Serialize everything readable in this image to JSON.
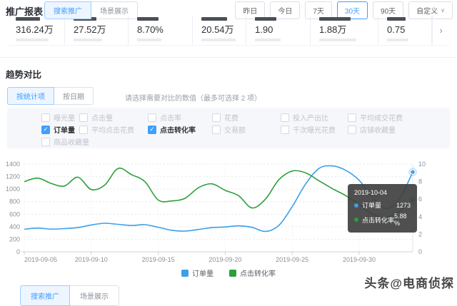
{
  "header": {
    "title": "推广报表",
    "tabs": [
      {
        "label": "搜索推广",
        "active": true
      },
      {
        "label": "场景展示",
        "active": false
      }
    ],
    "date_buttons": [
      {
        "label": "昨日",
        "active": false
      },
      {
        "label": "今日",
        "active": false
      },
      {
        "label": "7天",
        "active": false
      },
      {
        "label": "30天",
        "active": true
      },
      {
        "label": "90天",
        "active": false
      },
      {
        "label": "自定义",
        "active": false,
        "dropdown": true
      }
    ]
  },
  "stats": {
    "values": [
      "316.24万",
      "27.52万",
      "8.70%",
      "20.54万",
      "1.90",
      "1.88万",
      "0.75"
    ],
    "next_arrow": "›"
  },
  "trend": {
    "title": "趋势对比",
    "tabs": [
      {
        "label": "按统计项",
        "active": true
      },
      {
        "label": "按日期",
        "active": false
      }
    ],
    "hint": "请选择需要对比的数值（最多可选择 2 项）",
    "metrics": [
      {
        "label": "曝光量",
        "checked": false
      },
      {
        "label": "点击量",
        "checked": false
      },
      {
        "label": "点击率",
        "checked": false
      },
      {
        "label": "花费",
        "checked": false
      },
      {
        "label": "投入产出比",
        "checked": false
      },
      {
        "label": "平均成交花费",
        "checked": false
      },
      {
        "label": "订单量",
        "checked": true
      },
      {
        "label": "平均点击花费",
        "checked": false
      },
      {
        "label": "点击转化率",
        "checked": true
      },
      {
        "label": "交易额",
        "checked": false
      },
      {
        "label": "千次曝光花费",
        "checked": false
      },
      {
        "label": "店铺收藏量",
        "checked": false
      },
      {
        "label": "商品收藏量",
        "checked": false
      }
    ]
  },
  "chart_data": {
    "type": "line",
    "x": [
      "2019-09-05",
      "2019-09-06",
      "2019-09-07",
      "2019-09-08",
      "2019-09-09",
      "2019-09-10",
      "2019-09-11",
      "2019-09-12",
      "2019-09-13",
      "2019-09-14",
      "2019-09-15",
      "2019-09-16",
      "2019-09-17",
      "2019-09-18",
      "2019-09-19",
      "2019-09-20",
      "2019-09-21",
      "2019-09-22",
      "2019-09-23",
      "2019-09-24",
      "2019-09-25",
      "2019-09-26",
      "2019-09-27",
      "2019-09-28",
      "2019-09-29",
      "2019-09-30",
      "2019-10-01",
      "2019-10-02",
      "2019-10-03",
      "2019-10-04"
    ],
    "x_tick_labels": [
      "2019-09-05",
      "2019-09-10",
      "2019-09-15",
      "2019-09-20",
      "2019-09-25",
      "2019-09-30"
    ],
    "series": [
      {
        "name": "订单量",
        "axis": "left",
        "color": "#3aa0e8",
        "values": [
          360,
          378,
          362,
          370,
          386,
          428,
          455,
          438,
          420,
          432,
          392,
          344,
          330,
          356,
          386,
          396,
          414,
          390,
          325,
          420,
          720,
          1080,
          1330,
          1370,
          1300,
          1140,
          870,
          690,
          840,
          1273
        ]
      },
      {
        "name": "点击转化率",
        "axis": "right",
        "color": "#2ba03a",
        "values": [
          8.0,
          8.4,
          7.8,
          7.5,
          8.5,
          7.1,
          7.6,
          9.5,
          8.8,
          8.0,
          5.9,
          5.8,
          6.1,
          7.3,
          7.75,
          7.0,
          6.4,
          5.0,
          6.0,
          8.2,
          9.2,
          9.0,
          8.1,
          7.2,
          6.4,
          5.4,
          4.3,
          3.9,
          4.6,
          5.88
        ]
      }
    ],
    "left_axis": {
      "min": 0,
      "max": 1400,
      "ticks": [
        0,
        200,
        400,
        600,
        800,
        1000,
        1200,
        1400
      ]
    },
    "right_axis": {
      "min": 0,
      "max": 10,
      "ticks": [
        0,
        2,
        4,
        6,
        8,
        10
      ]
    },
    "grid": true,
    "legend_position": "bottom",
    "highlight_index": 29
  },
  "tooltip": {
    "date": "2019-10-04",
    "rows": [
      {
        "label": "订单量",
        "value": "1273",
        "color": "#3aa0e8"
      },
      {
        "label": "点击转化率",
        "value": "5.88 %",
        "color": "#2ba03a"
      }
    ]
  },
  "footer": {
    "tabs": [
      {
        "label": "搜索推广",
        "active": true
      },
      {
        "label": "场景展示",
        "active": false
      }
    ]
  },
  "watermark": "头条@电商侦探",
  "colors": {
    "primary": "#409eff",
    "orders_line": "#3aa0e8",
    "conversion_line": "#2ba03a"
  }
}
